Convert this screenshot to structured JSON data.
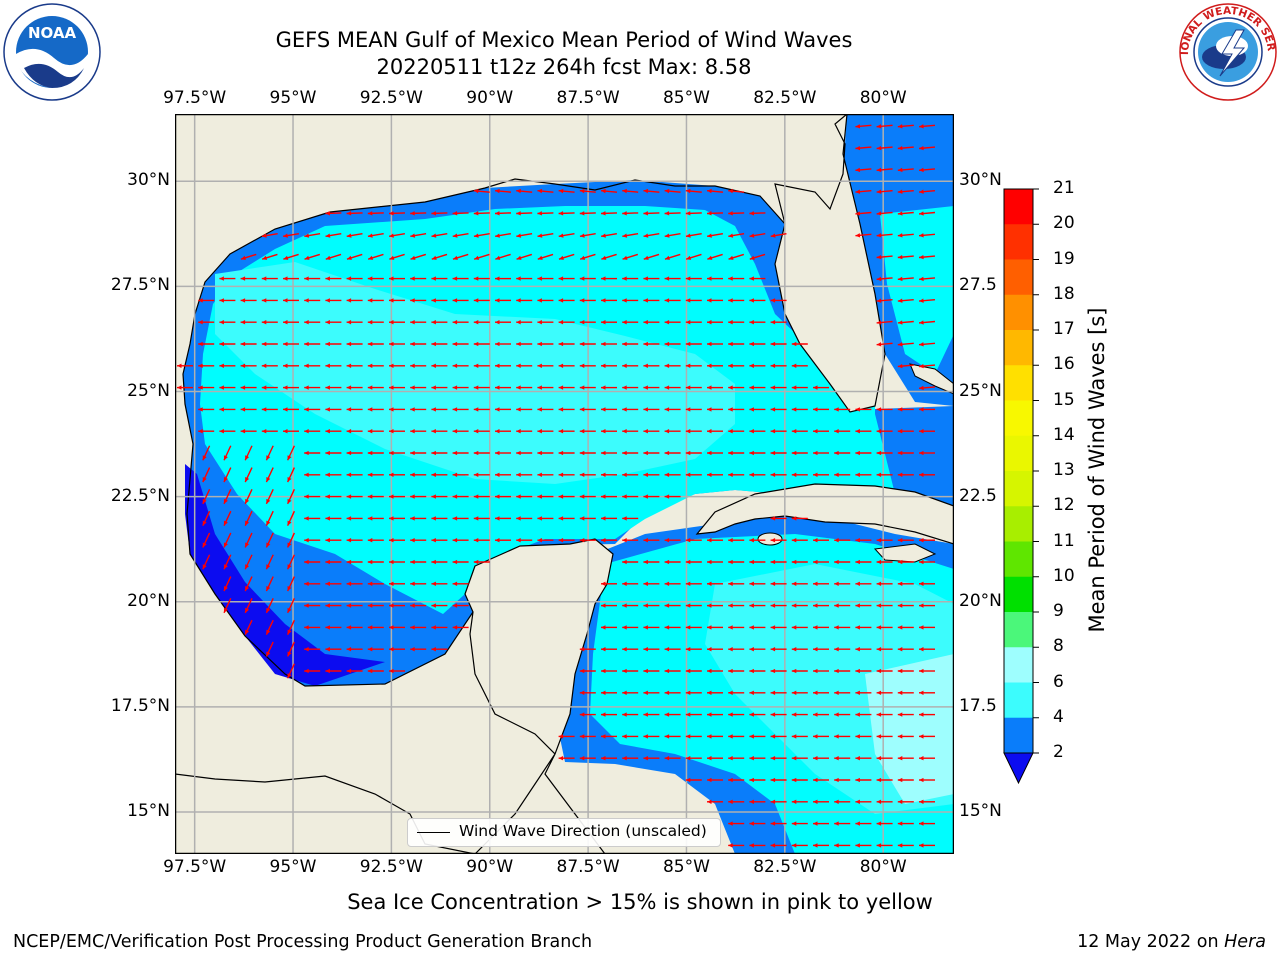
{
  "header": {
    "title_line1": "GEFS MEAN Gulf of Mexico Mean Period of Wind Waves",
    "title_line2": "20220511 t12z 264h fcst   Max: 8.58"
  },
  "map": {
    "lon_ticks_top": [
      "97.5°W",
      "95°W",
      "92.5°W",
      "90°W",
      "87.5°W",
      "85°W",
      "82.5°W",
      "80°W"
    ],
    "lon_ticks_bottom": [
      "97.5°W",
      "95°W",
      "92.5°W",
      "90°W",
      "87.5°W",
      "85°W",
      "82.5°W",
      "80°W"
    ],
    "lat_ticks_left": [
      "30°N",
      "27.5°N",
      "25°N",
      "22.5°N",
      "20°N",
      "17.5°N",
      "15°N"
    ],
    "lat_ticks_right": [
      "30°N",
      "27.5",
      "25°N",
      "22.5",
      "20°N",
      "17.5",
      "15°N"
    ],
    "extent": {
      "lon_min": -98,
      "lon_max": -78.2,
      "lat_min": 14,
      "lat_max": 31.6
    },
    "arrow_direction": "from east (westward), veering northwest near the northern Gulf coast",
    "colors": {
      "land": "#efedde",
      "ocean_level_2_4": "#0a7dfa",
      "ocean_level_4_6": "#00fdfe",
      "ocean_level_6_8": "#3cfcfd",
      "ocean_level_below_2": "#0c0cf0",
      "arrow": "#ff0000",
      "grid": "#b0b0b0"
    }
  },
  "legend": {
    "label": "Wind Wave Direction (unscaled)"
  },
  "colorbar": {
    "title": "Mean Period of Wind Waves [s]",
    "levels": [
      "2",
      "4",
      "6",
      "8",
      "9",
      "10",
      "11",
      "12",
      "13",
      "14",
      "15",
      "16",
      "17",
      "18",
      "19",
      "20",
      "21"
    ],
    "colors": [
      "#0a7dfa",
      "#00fdfe",
      "#3cfcfd",
      "#9efefe",
      "#4bf77a",
      "#00e000",
      "#5fe600",
      "#a8ee00",
      "#d6f500",
      "#eaf700",
      "#f8f800",
      "#ffe000",
      "#ffb800",
      "#ff9000",
      "#ff5f00",
      "#ff3000",
      "#ff0000"
    ],
    "under_color": "#0c0cf0"
  },
  "caption": "Sea Ice Concentration > 15% is shown in pink to yellow",
  "footer": {
    "left": "NCEP/EMC/Verification Post Processing Product Generation Branch",
    "right_date": "12 May 2022 on",
    "right_machine": "Hera"
  },
  "logos": {
    "noaa_text": "NOAA",
    "noaa_ring": "NATIONAL OCEANIC AND ATMOSPHERIC ADMINISTRATION · U.S. DEPARTMENT OF COMMERCE",
    "nws_ring": "NATIONAL WEATHER SERVICE"
  }
}
